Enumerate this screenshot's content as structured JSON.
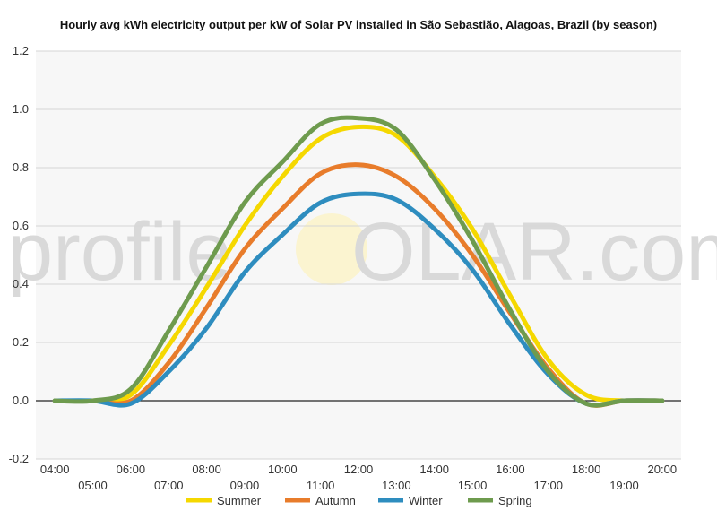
{
  "chart_data": {
    "type": "line",
    "title": "Hourly avg kWh electricity output per kW of Solar PV installed in São Sebastião, Alagoas, Brazil (by season)",
    "watermark": {
      "prefix": "profile",
      "sun_letter": "S",
      "suffix": "OLAR.com"
    },
    "x": [
      "04:00",
      "05:00",
      "06:00",
      "07:00",
      "08:00",
      "09:00",
      "10:00",
      "11:00",
      "12:00",
      "13:00",
      "14:00",
      "15:00",
      "16:00",
      "17:00",
      "18:00",
      "19:00",
      "20:00"
    ],
    "ylim": [
      -0.2,
      1.2
    ],
    "yticks": [
      "-0.2",
      "0.0",
      "0.2",
      "0.4",
      "0.6",
      "0.8",
      "1.0",
      "1.2"
    ],
    "grid": true,
    "legend_position": "bottom",
    "series": [
      {
        "name": "Summer",
        "color": "#f5d800",
        "values": [
          0,
          0,
          0.02,
          0.19,
          0.39,
          0.6,
          0.77,
          0.9,
          0.94,
          0.91,
          0.77,
          0.59,
          0.36,
          0.14,
          0.02,
          0,
          0
        ]
      },
      {
        "name": "Autumn",
        "color": "#e87c2b",
        "values": [
          0,
          0,
          0,
          0.13,
          0.32,
          0.52,
          0.66,
          0.78,
          0.81,
          0.77,
          0.66,
          0.5,
          0.3,
          0.11,
          -0.01,
          0,
          0
        ]
      },
      {
        "name": "Winter",
        "color": "#2e8dbf",
        "values": [
          0,
          0,
          -0.01,
          0.1,
          0.25,
          0.44,
          0.57,
          0.68,
          0.71,
          0.69,
          0.59,
          0.45,
          0.26,
          0.09,
          -0.01,
          0,
          0
        ]
      },
      {
        "name": "Spring",
        "color": "#6e9b4e",
        "values": [
          0,
          0,
          0.04,
          0.24,
          0.46,
          0.68,
          0.82,
          0.95,
          0.97,
          0.93,
          0.76,
          0.55,
          0.31,
          0.1,
          -0.01,
          0,
          0
        ]
      }
    ]
  }
}
